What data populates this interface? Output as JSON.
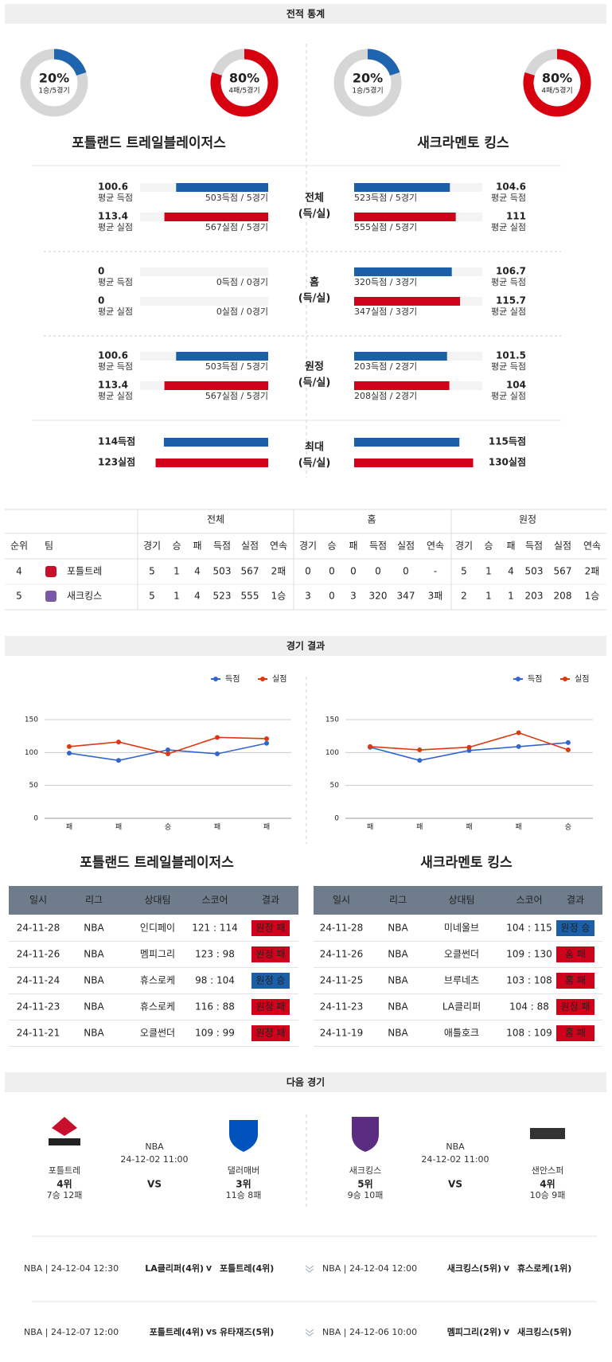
{
  "sections": {
    "stats": "전적 통계",
    "results": "경기 결과",
    "next": "다음 경기"
  },
  "teams": [
    "포틀랜드 트레일블레이저스",
    "새크라멘토 킹스"
  ],
  "donuts": [
    {
      "value": 20,
      "label": "20%",
      "sub": "1승/5경기",
      "color": "#1f64ae"
    },
    {
      "value": 80,
      "label": "80%",
      "sub": "4패/5경기",
      "color": "#d7000f"
    },
    {
      "value": 20,
      "label": "20%",
      "sub": "1승/5경기",
      "color": "#1f64ae"
    },
    {
      "value": 80,
      "label": "80%",
      "sub": "4패/5경기",
      "color": "#d7000f"
    }
  ],
  "comparison": {
    "groups": [
      {
        "label": "전체",
        "sub": "(득/실)",
        "left": [
          {
            "value": 100.6,
            "name": "평균 득점",
            "detail": "503득점 / 5경기"
          },
          {
            "value": 113.4,
            "name": "평균 실점",
            "detail": "567실점 / 5경기"
          }
        ],
        "right": [
          {
            "value": 104.6,
            "name": "평균 득점",
            "detail": "523득점 / 5경기"
          },
          {
            "value": 111,
            "name": "평균 실점",
            "detail": "555실점 / 5경기"
          }
        ]
      },
      {
        "label": "홈",
        "sub": "(득/실)",
        "left": [
          {
            "value": 0,
            "name": "평균 득점",
            "detail": "0득점 / 0경기"
          },
          {
            "value": 0,
            "name": "평균 실점",
            "detail": "0실점 / 0경기"
          }
        ],
        "right": [
          {
            "value": 106.7,
            "name": "평균 득점",
            "detail": "320득점 / 3경기"
          },
          {
            "value": 115.7,
            "name": "평균 실점",
            "detail": "347실점 / 3경기"
          }
        ]
      },
      {
        "label": "원정",
        "sub": "(득/실)",
        "left": [
          {
            "value": 100.6,
            "name": "평균 득점",
            "detail": "503득점 / 5경기"
          },
          {
            "value": 113.4,
            "name": "평균 실점",
            "detail": "567실점 / 5경기"
          }
        ],
        "right": [
          {
            "value": 101.5,
            "name": "평균 득점",
            "detail": "203득점 / 2경기"
          },
          {
            "value": 104,
            "name": "평균 실점",
            "detail": "208실점 / 2경기"
          }
        ]
      },
      {
        "label": "최대",
        "sub": "(득/실)",
        "max": true,
        "left": [
          {
            "value": 114,
            "label": "114득점"
          },
          {
            "value": 123,
            "label": "123실점"
          }
        ],
        "right": [
          {
            "value": 115,
            "label": "115득점"
          },
          {
            "value": 130,
            "label": "130실점"
          }
        ]
      }
    ]
  },
  "standings": {
    "headers": [
      "순위",
      "팀"
    ],
    "groups": [
      "전체",
      "홈",
      "원정"
    ],
    "columns": [
      "경기",
      "승",
      "패",
      "득점",
      "실점",
      "연속"
    ],
    "rows": [
      {
        "rank": 4,
        "team": "포틀트레",
        "cells": [
          [
            5,
            1,
            4,
            503,
            567,
            "2패"
          ],
          [
            0,
            0,
            0,
            0,
            0,
            "-"
          ],
          [
            5,
            1,
            4,
            503,
            567,
            "2패"
          ]
        ]
      },
      {
        "rank": 5,
        "team": "새크킹스",
        "cells": [
          [
            5,
            1,
            4,
            523,
            555,
            "1승"
          ],
          [
            3,
            0,
            3,
            320,
            347,
            "3패"
          ],
          [
            2,
            1,
            1,
            203,
            208,
            "1승"
          ]
        ]
      }
    ]
  },
  "chart_data": [
    {
      "type": "line",
      "categories": [
        "패",
        "패",
        "승",
        "패",
        "패"
      ],
      "series": [
        {
          "name": "득점",
          "color": "#3366cc",
          "values": [
            99,
            88,
            104,
            98,
            114
          ]
        },
        {
          "name": "실점",
          "color": "#dc3912",
          "values": [
            109,
            116,
            98,
            123,
            121
          ]
        }
      ],
      "ylim": [
        0,
        150
      ],
      "yticks": [
        0,
        50,
        100,
        150
      ],
      "grid": true,
      "legend": "top-right"
    },
    {
      "type": "line",
      "categories": [
        "패",
        "패",
        "패",
        "패",
        "승"
      ],
      "series": [
        {
          "name": "득점",
          "color": "#3366cc",
          "values": [
            108,
            88,
            103,
            109,
            115
          ]
        },
        {
          "name": "실점",
          "color": "#dc3912",
          "values": [
            109,
            104,
            108,
            130,
            104
          ]
        }
      ],
      "ylim": [
        0,
        150
      ],
      "yticks": [
        0,
        50,
        100,
        150
      ],
      "grid": true,
      "legend": "top-right"
    }
  ],
  "results": {
    "headers": [
      "일시",
      "리그",
      "상대팀",
      "스코어",
      "결과"
    ],
    "tables": [
      [
        [
          "24-11-28",
          "NBA",
          "인디페이",
          "121 : 114",
          "원정 패"
        ],
        [
          "24-11-26",
          "NBA",
          "멤피그리",
          "123 : 98",
          "원정 패"
        ],
        [
          "24-11-24",
          "NBA",
          "휴스로케",
          "98 : 104",
          "원정 승"
        ],
        [
          "24-11-23",
          "NBA",
          "휴스로케",
          "116 : 88",
          "원정 패"
        ],
        [
          "24-11-21",
          "NBA",
          "오클썬더",
          "109 : 99",
          "원정 패"
        ]
      ],
      [
        [
          "24-11-28",
          "NBA",
          "미네울브",
          "104 : 115",
          "원정 승"
        ],
        [
          "24-11-26",
          "NBA",
          "오클썬더",
          "109 : 130",
          "홈 패"
        ],
        [
          "24-11-25",
          "NBA",
          "브루네츠",
          "103 : 108",
          "홈 패"
        ],
        [
          "24-11-23",
          "NBA",
          "LA클리퍼",
          "104 : 88",
          "원정 패"
        ],
        [
          "24-11-19",
          "NBA",
          "애틀호크",
          "108 : 109",
          "홈 패"
        ]
      ]
    ]
  },
  "next": [
    {
      "league": "NBA",
      "datetime": "24-12-02 11:00",
      "vs": "VS",
      "home": {
        "name": "포틀트레",
        "rank": "4위",
        "record": "7승 12패"
      },
      "away": {
        "name": "댈러매버",
        "rank": "3위",
        "record": "11승 8패"
      }
    },
    {
      "league": "NBA",
      "datetime": "24-12-02 11:00",
      "vs": "VS",
      "home": {
        "name": "새크킹스",
        "rank": "5위",
        "record": "9승 10패"
      },
      "away": {
        "name": "샌안스퍼",
        "rank": "4위",
        "record": "10승 9패"
      }
    }
  ],
  "upcoming": [
    [
      {
        "info": "NBA | 24-12-04 12:30",
        "home": "LA클리퍼(4위)",
        "vs": "V",
        "away": "포틀트레(4위)"
      },
      {
        "info": "NBA | 24-12-04 12:00",
        "home": "새크킹스(5위)",
        "vs": "V",
        "away": "휴스로케(1위)"
      }
    ],
    [
      {
        "info": "NBA | 24-12-07 12:00",
        "home": "포틀트레(4위)",
        "vs": "VS",
        "away": "유타재즈(5위)"
      },
      {
        "info": "NBA | 24-12-06 10:00",
        "home": "멤피그리(2위)",
        "vs": "V",
        "away": "새크킹스(5위)"
      }
    ]
  ]
}
